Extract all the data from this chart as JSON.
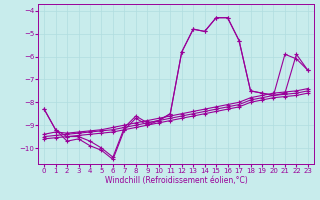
{
  "xlabel": "Windchill (Refroidissement éolien,°C)",
  "x": [
    0,
    1,
    2,
    3,
    4,
    5,
    6,
    7,
    8,
    9,
    10,
    11,
    12,
    13,
    14,
    15,
    16,
    17,
    18,
    19,
    20,
    21,
    22,
    23
  ],
  "y_main": [
    -8.3,
    -9.2,
    -9.7,
    -9.6,
    -9.9,
    -10.1,
    -10.5,
    -9.2,
    -8.7,
    -9.0,
    -8.8,
    -8.5,
    -5.8,
    -4.8,
    -4.9,
    -4.3,
    -4.3,
    -5.3,
    -7.5,
    -7.6,
    -7.7,
    -7.6,
    -5.9,
    -6.6
  ],
  "y_line1": [
    -9.4,
    -9.3,
    -9.35,
    -9.3,
    -9.25,
    -9.2,
    -9.1,
    -9.0,
    -8.9,
    -8.8,
    -8.7,
    -8.6,
    -8.5,
    -8.4,
    -8.3,
    -8.2,
    -8.1,
    -8.0,
    -7.8,
    -7.7,
    -7.6,
    -7.55,
    -7.5,
    -7.4
  ],
  "y_line2": [
    -9.6,
    -9.55,
    -9.5,
    -9.45,
    -9.4,
    -9.35,
    -9.3,
    -9.2,
    -9.1,
    -9.0,
    -8.9,
    -8.8,
    -8.7,
    -8.6,
    -8.5,
    -8.4,
    -8.3,
    -8.2,
    -8.0,
    -7.9,
    -7.8,
    -7.75,
    -7.7,
    -7.6
  ],
  "y_line3": [
    -9.5,
    -9.45,
    -9.4,
    -9.35,
    -9.3,
    -9.25,
    -9.2,
    -9.1,
    -9.0,
    -8.9,
    -8.8,
    -8.7,
    -8.6,
    -8.5,
    -8.4,
    -8.3,
    -8.2,
    -8.1,
    -7.9,
    -7.8,
    -7.7,
    -7.65,
    -7.6,
    -7.5
  ],
  "y_zigzag": [
    -8.3,
    -9.2,
    -9.5,
    -9.5,
    -9.7,
    -10.0,
    -10.4,
    -9.1,
    -8.6,
    -8.9,
    -8.8,
    -8.5,
    -5.8,
    -4.8,
    -4.9,
    -4.3,
    -4.3,
    -5.3,
    -7.5,
    -7.6,
    -7.7,
    -5.9,
    -6.1,
    -6.6
  ],
  "xlim": [
    -0.5,
    23.5
  ],
  "ylim": [
    -10.7,
    -3.7
  ],
  "yticks": [
    -10,
    -9,
    -8,
    -7,
    -6,
    -5,
    -4
  ],
  "xticks": [
    0,
    1,
    2,
    3,
    4,
    5,
    6,
    7,
    8,
    9,
    10,
    11,
    12,
    13,
    14,
    15,
    16,
    17,
    18,
    19,
    20,
    21,
    22,
    23
  ],
  "grid_color": "#b0dde0",
  "bg_color": "#c8ecec",
  "line_color": "#990099"
}
